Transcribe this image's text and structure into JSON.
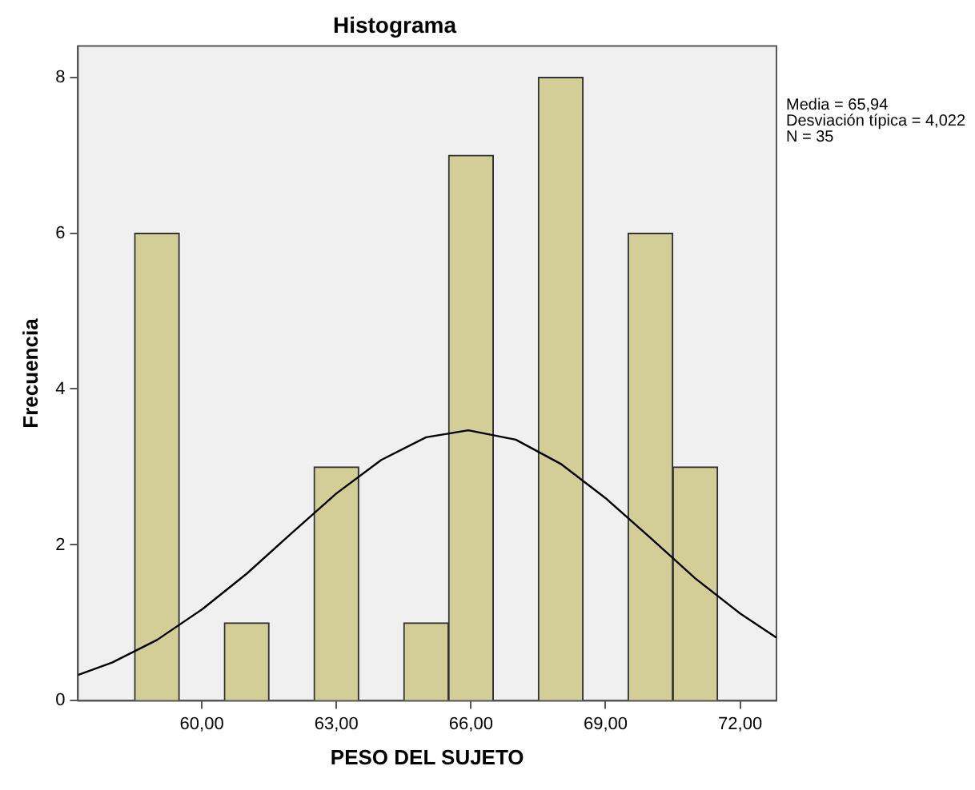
{
  "chart_data": {
    "type": "histogram",
    "title": "Histograma",
    "xlabel": "PESO DEL SUJETO",
    "ylabel": "Frecuencia",
    "bins": [
      58.5,
      59.5,
      60.5,
      61.5,
      62.5,
      63.5,
      64.5,
      65.5,
      66.5,
      67.5,
      68.5,
      69.5,
      70.5,
      71.5
    ],
    "values": [
      6,
      0,
      1,
      0,
      3,
      0,
      1,
      7,
      0,
      8,
      0,
      6,
      3
    ],
    "color": "#d3ce97",
    "series": [
      {
        "type": "line",
        "color": "#000000",
        "x": [
          57.24,
          58,
          59,
          60,
          61,
          62,
          63,
          64,
          65,
          65.94,
          67,
          68,
          69,
          70,
          71,
          72,
          72.81
        ],
        "values": [
          0.33,
          0.49,
          0.78,
          1.17,
          1.63,
          2.15,
          2.66,
          3.09,
          3.38,
          3.47,
          3.35,
          3.04,
          2.6,
          2.09,
          1.57,
          1.12,
          0.81
        ]
      }
    ],
    "xlim": [
      57.24,
      72.81
    ],
    "xticks": [
      {
        "value": 60,
        "label": "60,00"
      },
      {
        "value": 63,
        "label": "63,00"
      },
      {
        "value": 66,
        "label": "66,00"
      },
      {
        "value": 69,
        "label": "69,00"
      },
      {
        "value": 72,
        "label": "72,00"
      }
    ],
    "ylim": [
      0,
      8.4
    ],
    "yticks": [
      0,
      2,
      4,
      6,
      8
    ],
    "annotations": [
      "Media = 65,94",
      "Desviación típica = 4,022",
      "N = 35"
    ],
    "grid": false,
    "legend": false,
    "marker": "none"
  }
}
